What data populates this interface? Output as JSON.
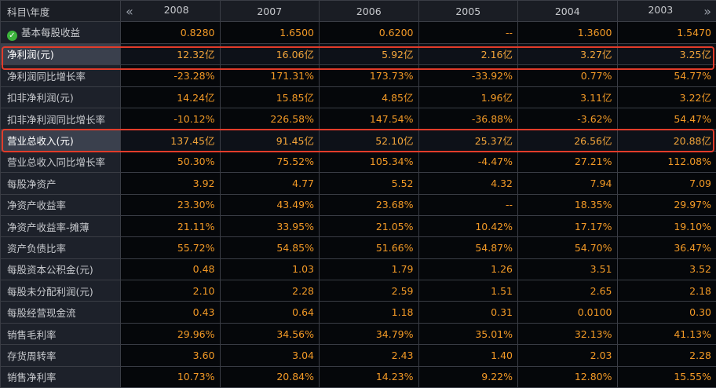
{
  "header": {
    "label": "科目\\年度",
    "prev_arrow": "«",
    "next_arrow": "»",
    "years": [
      "2008",
      "2007",
      "2006",
      "2005",
      "2004",
      "2003"
    ]
  },
  "rows": [
    {
      "name": "基本每股收益",
      "values": [
        "0.8280",
        "1.6500",
        "0.6200",
        "--",
        "1.3600",
        "1.5470"
      ]
    },
    {
      "name": "净利润(元)",
      "values": [
        "12.32亿",
        "16.06亿",
        "5.92亿",
        "2.16亿",
        "3.27亿",
        "3.25亿"
      ]
    },
    {
      "name": "净利润同比增长率",
      "values": [
        "-23.28%",
        "171.31%",
        "173.73%",
        "-33.92%",
        "0.77%",
        "54.77%"
      ]
    },
    {
      "name": "扣非净利润(元)",
      "values": [
        "14.24亿",
        "15.85亿",
        "4.85亿",
        "1.96亿",
        "3.11亿",
        "3.22亿"
      ]
    },
    {
      "name": "扣非净利润同比增长率",
      "values": [
        "-10.12%",
        "226.58%",
        "147.54%",
        "-36.88%",
        "-3.62%",
        "54.47%"
      ]
    },
    {
      "name": "营业总收入(元)",
      "values": [
        "137.45亿",
        "91.45亿",
        "52.10亿",
        "25.37亿",
        "26.56亿",
        "20.88亿"
      ]
    },
    {
      "name": "营业总收入同比增长率",
      "values": [
        "50.30%",
        "75.52%",
        "105.34%",
        "-4.47%",
        "27.21%",
        "112.08%"
      ]
    },
    {
      "name": "每股净资产",
      "values": [
        "3.92",
        "4.77",
        "5.52",
        "4.32",
        "7.94",
        "7.09"
      ]
    },
    {
      "name": "净资产收益率",
      "values": [
        "23.30%",
        "43.49%",
        "23.68%",
        "--",
        "18.35%",
        "29.97%"
      ]
    },
    {
      "name": "净资产收益率-摊薄",
      "values": [
        "21.11%",
        "33.95%",
        "21.05%",
        "10.42%",
        "17.17%",
        "19.10%"
      ]
    },
    {
      "name": "资产负债比率",
      "values": [
        "55.72%",
        "54.85%",
        "51.66%",
        "54.87%",
        "54.70%",
        "36.47%"
      ]
    },
    {
      "name": "每股资本公积金(元)",
      "values": [
        "0.48",
        "1.03",
        "1.79",
        "1.26",
        "3.51",
        "3.52"
      ]
    },
    {
      "name": "每股未分配利润(元)",
      "values": [
        "2.10",
        "2.28",
        "2.59",
        "1.51",
        "2.65",
        "2.18"
      ]
    },
    {
      "name": "每股经营现金流",
      "values": [
        "0.43",
        "0.64",
        "1.18",
        "0.31",
        "0.0100",
        "0.30"
      ]
    },
    {
      "name": "销售毛利率",
      "values": [
        "29.96%",
        "34.56%",
        "34.79%",
        "35.01%",
        "32.13%",
        "41.13%"
      ]
    },
    {
      "name": "存货周转率",
      "values": [
        "3.60",
        "3.04",
        "2.43",
        "1.40",
        "2.03",
        "2.28"
      ]
    },
    {
      "name": "销售净利率",
      "values": [
        "10.73%",
        "20.84%",
        "14.23%",
        "9.22%",
        "12.80%",
        "15.55%"
      ]
    }
  ],
  "colors": {
    "value_text": "#f39a26",
    "highlight_border": "#e23c2a",
    "check_icon": "#3cb43c"
  }
}
